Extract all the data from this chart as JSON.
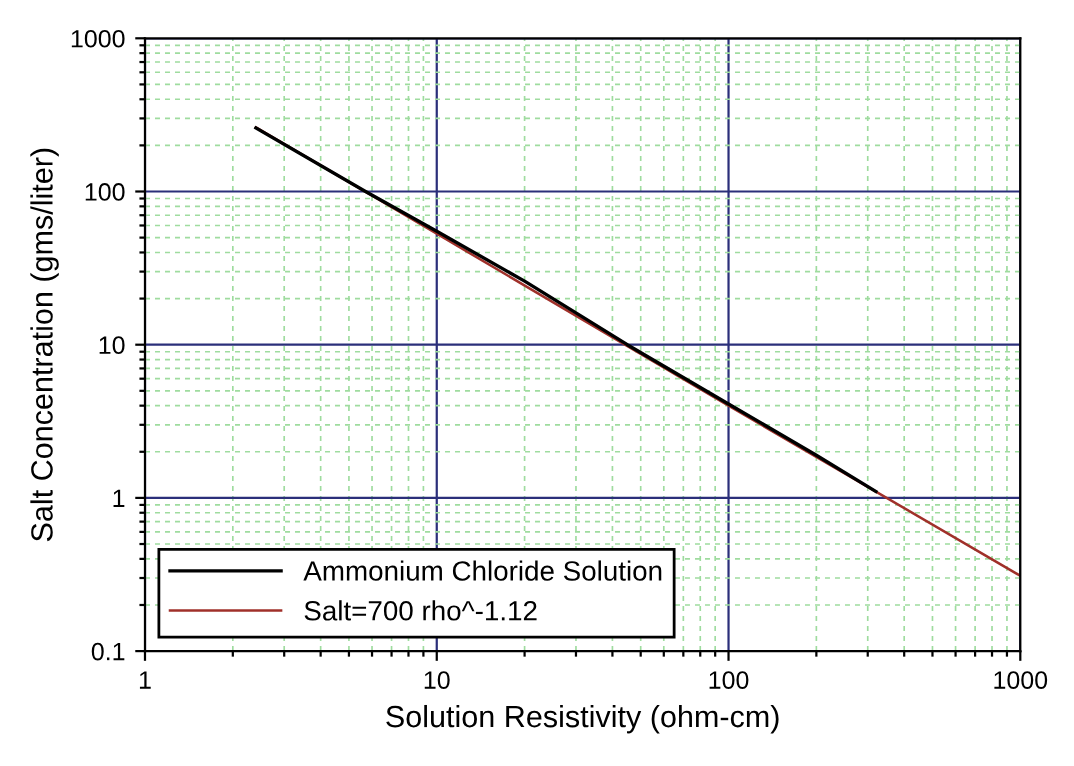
{
  "chart_data": {
    "type": "line",
    "xlabel": "Solution Resistivity (ohm-cm)",
    "ylabel": "Salt Concentration (gms/liter)",
    "log": "xy",
    "xlim": [
      1,
      1000
    ],
    "ylim": [
      0.1,
      1000
    ],
    "xticks": [
      1,
      {
        "value": 2,
        "label": null
      },
      {
        "value": 3,
        "label": null
      },
      {
        "value": 4,
        "label": null
      },
      {
        "value": 5,
        "label": null
      },
      {
        "value": 6,
        "label": null
      },
      {
        "value": 7,
        "label": null
      },
      {
        "value": 8,
        "label": null
      },
      {
        "value": 9,
        "label": null
      },
      10,
      {
        "value": 20,
        "label": null
      },
      {
        "value": 30,
        "label": null
      },
      {
        "value": 40,
        "label": null
      },
      {
        "value": 50,
        "label": null
      },
      {
        "value": 60,
        "label": null
      },
      {
        "value": 70,
        "label": null
      },
      {
        "value": 80,
        "label": null
      },
      {
        "value": 90,
        "label": null
      },
      100,
      {
        "value": 200,
        "label": null
      },
      {
        "value": 300,
        "label": null
      },
      {
        "value": 400,
        "label": null
      },
      {
        "value": 500,
        "label": null
      },
      {
        "value": 600,
        "label": null
      },
      {
        "value": 700,
        "label": null
      },
      {
        "value": 800,
        "label": null
      },
      {
        "value": 900,
        "label": null
      },
      1000
    ],
    "yticks": [
      0.1,
      {
        "value": 0.2,
        "label": null
      },
      {
        "value": 0.3,
        "label": null
      },
      {
        "value": 0.4,
        "label": null
      },
      {
        "value": 0.5,
        "label": null
      },
      {
        "value": 0.6,
        "label": null
      },
      {
        "value": 0.7,
        "label": null
      },
      {
        "value": 0.8,
        "label": null
      },
      {
        "value": 0.9,
        "label": null
      },
      1,
      {
        "value": 2,
        "label": null
      },
      {
        "value": 3,
        "label": null
      },
      {
        "value": 4,
        "label": null
      },
      {
        "value": 5,
        "label": null
      },
      {
        "value": 6,
        "label": null
      },
      {
        "value": 7,
        "label": null
      },
      {
        "value": 8,
        "label": null
      },
      {
        "value": 9,
        "label": null
      },
      10,
      {
        "value": 20,
        "label": null
      },
      {
        "value": 30,
        "label": null
      },
      {
        "value": 40,
        "label": null
      },
      {
        "value": 50,
        "label": null
      },
      {
        "value": 60,
        "label": null
      },
      {
        "value": 70,
        "label": null
      },
      {
        "value": 80,
        "label": null
      },
      {
        "value": 90,
        "label": null
      },
      100,
      {
        "value": 200,
        "label": null
      },
      {
        "value": 300,
        "label": null
      },
      {
        "value": 400,
        "label": null
      },
      {
        "value": 500,
        "label": null
      },
      {
        "value": 600,
        "label": null
      },
      {
        "value": 700,
        "label": null
      },
      {
        "value": 800,
        "label": null
      },
      {
        "value": 900,
        "label": null
      },
      1000
    ],
    "grid": true,
    "legend": "bottom left",
    "line_style": "solid",
    "marker": "none",
    "series": [
      {
        "name": "Ammonium Chloride Solution",
        "color": "#000000",
        "x": [
          2.4,
          5.7,
          10,
          20,
          45,
          100,
          200,
          320
        ],
        "values": [
          260,
          100,
          55,
          26,
          10,
          4.1,
          1.9,
          1.1
        ]
      },
      {
        "name": "Salt=700 rho^-1.12",
        "color": "#a0302a",
        "x": [
          2.4,
          10,
          100,
          1000
        ],
        "values": [
          262,
          53,
          4,
          0.31
        ]
      }
    ]
  }
}
